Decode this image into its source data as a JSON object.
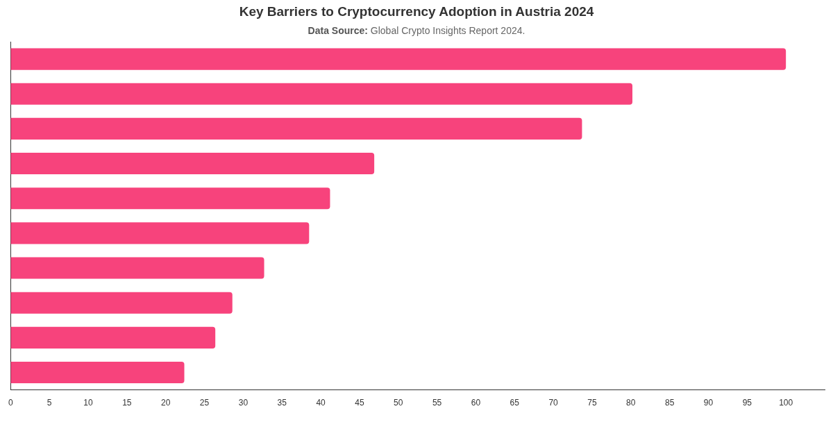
{
  "chart_data": {
    "type": "bar",
    "orientation": "horizontal",
    "title": "Key Barriers to Cryptocurrency Adoption in Austria 2024",
    "subtitle": "Data Source: Global Crypto Insights Report 2024.",
    "categories": [
      null,
      null,
      null,
      null,
      null,
      null,
      null,
      null,
      null,
      null
    ],
    "values": [
      100,
      80.2,
      73.7,
      46.9,
      41.2,
      38.5,
      32.7,
      28.6,
      26.4,
      22.4
    ],
    "color": "#f7437c",
    "xlim": [
      0,
      105
    ],
    "xticks": [
      0,
      5,
      10,
      15,
      20,
      25,
      30,
      35,
      40,
      45,
      50,
      55,
      60,
      65,
      70,
      75,
      80,
      85,
      90,
      95,
      100
    ],
    "grid": false,
    "legend": false
  }
}
